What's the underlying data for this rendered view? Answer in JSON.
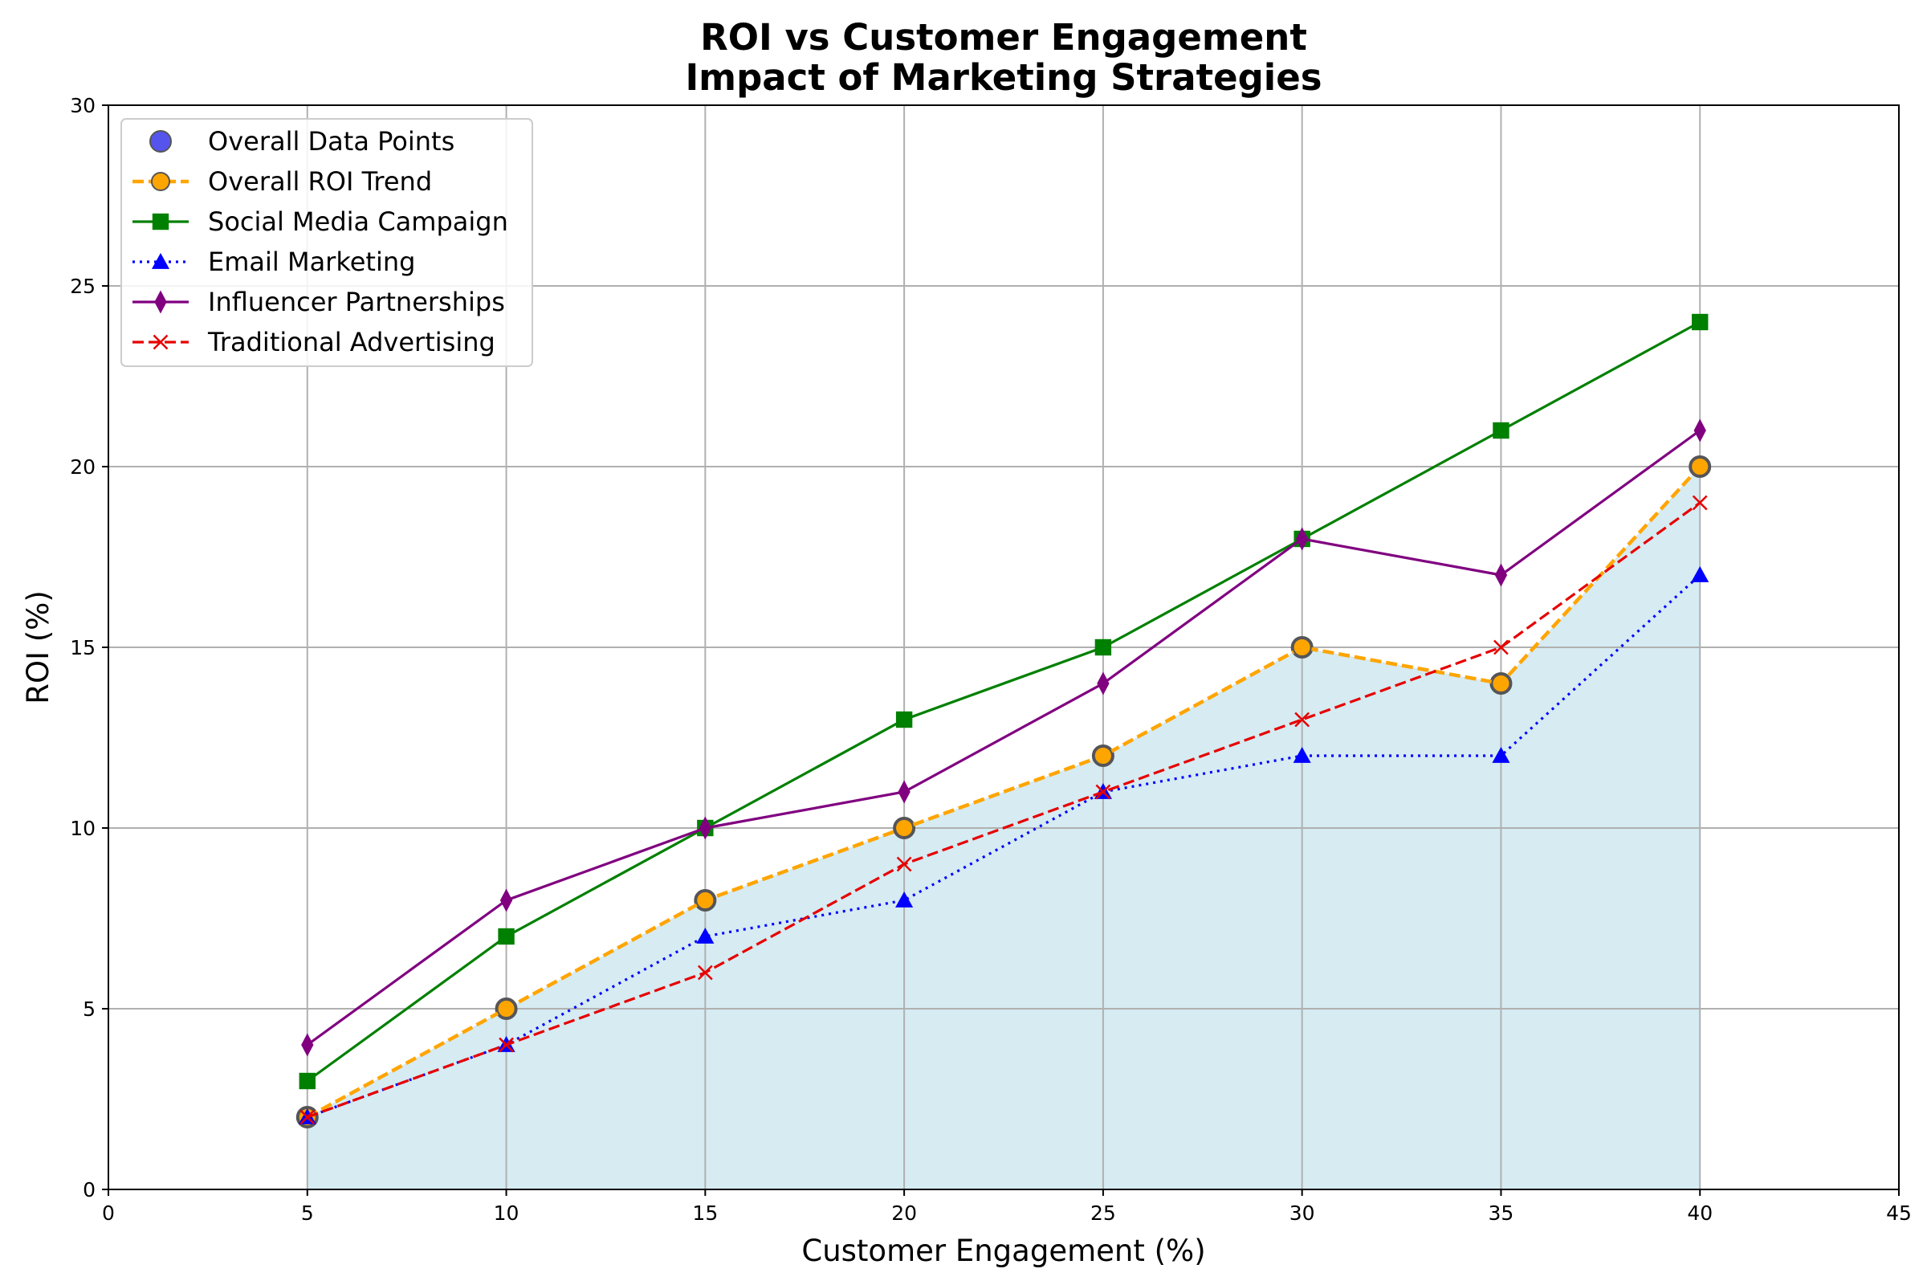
{
  "chart_data": {
    "type": "line",
    "title": "ROI vs Customer Engagement",
    "subtitle": "Impact of Marketing Strategies",
    "xlabel": "Customer Engagement (%)",
    "ylabel": "ROI (%)",
    "xlim": [
      0,
      45
    ],
    "ylim": [
      0,
      30
    ],
    "xticks": [
      0,
      5,
      10,
      15,
      20,
      25,
      30,
      35,
      40,
      45
    ],
    "yticks": [
      0,
      5,
      10,
      15,
      20,
      25,
      30
    ],
    "grid": true,
    "legend_position": "top-left",
    "x": [
      5,
      10,
      15,
      20,
      25,
      30,
      35,
      40
    ],
    "fill_under": {
      "series": "Overall ROI Trend",
      "color": "#add8e6"
    },
    "series": [
      {
        "name": "Overall Data Points",
        "style": "scatter",
        "marker": "circle",
        "color": "#5555ee",
        "values": [
          2,
          5,
          8,
          10,
          12,
          15,
          14,
          20
        ]
      },
      {
        "name": "Overall ROI Trend",
        "style": "dashed",
        "marker": "circle",
        "color": "#ffa500",
        "values": [
          2,
          5,
          8,
          10,
          12,
          15,
          14,
          20
        ]
      },
      {
        "name": "Social Media Campaign",
        "style": "solid",
        "marker": "square",
        "color": "#008000",
        "values": [
          3,
          7,
          10,
          13,
          15,
          18,
          21,
          24
        ]
      },
      {
        "name": "Email Marketing",
        "style": "dotted",
        "marker": "triangle",
        "color": "#0000ff",
        "values": [
          2,
          4,
          7,
          8,
          11,
          12,
          12,
          17
        ]
      },
      {
        "name": "Influencer Partnerships",
        "style": "solid",
        "marker": "diamond",
        "color": "#800080",
        "values": [
          4,
          8,
          10,
          11,
          14,
          18,
          17,
          21
        ]
      },
      {
        "name": "Traditional Advertising",
        "style": "dashed",
        "marker": "x",
        "color": "#e60000",
        "values": [
          2,
          4,
          6,
          9,
          11,
          13,
          15,
          19
        ]
      }
    ]
  }
}
